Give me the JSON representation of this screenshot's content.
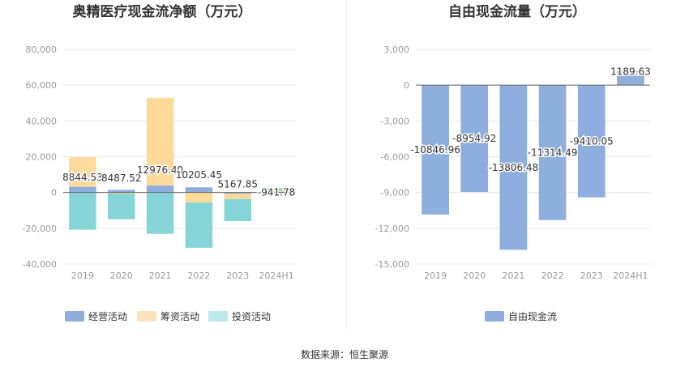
{
  "source": "数据来源：恒生聚源",
  "chart_data": [
    {
      "type": "bar",
      "stacked": true,
      "title": "奥精医疗现金流净额（万元）",
      "categories": [
        "2019",
        "2020",
        "2021",
        "2022",
        "2023",
        "2024H1"
      ],
      "ylim": [
        -40000,
        80000
      ],
      "yticks": [
        "-40,000",
        "-20,000",
        "0",
        "20,000",
        "40,000",
        "60,000",
        "80,000"
      ],
      "ytick_values": [
        -40000,
        -20000,
        0,
        20000,
        40000,
        60000,
        80000
      ],
      "series": [
        {
          "name": "经营活动",
          "color": "#8eaedd",
          "values": [
            3200,
            1500,
            3900,
            2900,
            -700,
            -420
          ]
        },
        {
          "name": "筹资活动",
          "color": "#fdd99a",
          "values": [
            16500,
            -600,
            49000,
            -5600,
            -3000,
            900
          ]
        },
        {
          "name": "投资活动",
          "color": "#85d5d8",
          "values": [
            -20800,
            -14300,
            -23100,
            -25300,
            -12300,
            1500
          ]
        }
      ],
      "net_labels": [
        "8844.53",
        "8487.52",
        "12976.40",
        "10205.45",
        "5167.85",
        "-941.78"
      ],
      "net_values": [
        8844.53,
        8487.52,
        12976.4,
        10205.45,
        5167.85,
        -941.78
      ],
      "legend": [
        "经营活动",
        "筹资活动",
        "投资活动"
      ],
      "legend_colors": [
        "#8eaedd",
        "#fde2bd",
        "#bde8ea"
      ]
    },
    {
      "type": "bar",
      "title": "自由现金流量（万元）",
      "categories": [
        "2019",
        "2020",
        "2021",
        "2022",
        "2023",
        "2024H1"
      ],
      "ylim": [
        -15000,
        3000
      ],
      "yticks": [
        "-15,000",
        "-12,000",
        "-9,000",
        "-6,000",
        "-3,000",
        "0",
        "3,000"
      ],
      "ytick_values": [
        -15000,
        -12000,
        -9000,
        -6000,
        -3000,
        0,
        3000
      ],
      "series": [
        {
          "name": "自由现金流",
          "color": "#8eaedd",
          "values": [
            -10846.96,
            -8954.92,
            -13806.48,
            -11314.49,
            -9410.05,
            1189.63
          ]
        }
      ],
      "value_labels": [
        "-10846.96",
        "-8954.92",
        "-13806.48",
        "-11314.49",
        "-9410.05",
        "1189.63"
      ],
      "legend": [
        "自由现金流"
      ],
      "legend_colors": [
        "#8eaedd"
      ]
    }
  ]
}
